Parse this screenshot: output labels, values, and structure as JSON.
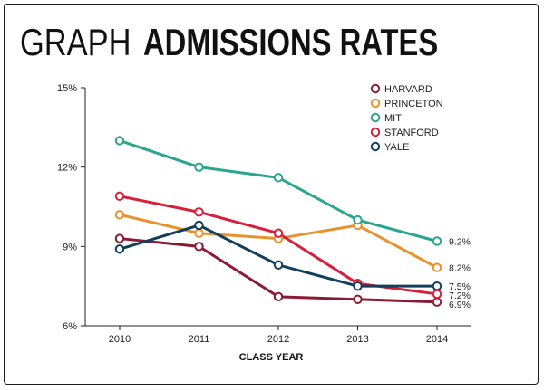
{
  "header": {
    "title_light": "GRAPH",
    "title_bold": "ADMISSIONS RATES"
  },
  "chart_data": {
    "type": "line",
    "title": "GRAPH ADMISSIONS RATES",
    "xlabel": "CLASS YEAR",
    "ylabel": "",
    "x": [
      2010,
      2011,
      2012,
      2013,
      2014
    ],
    "x_tick_labels": [
      "2010",
      "2011",
      "2012",
      "2013",
      "2014"
    ],
    "ylim": [
      6,
      15
    ],
    "y_ticks": [
      6,
      9,
      12,
      15
    ],
    "y_tick_labels": [
      "6%",
      "9%",
      "12%",
      "15%"
    ],
    "grid": false,
    "legend_position": "top-right",
    "series": [
      {
        "name": "HARVARD",
        "color": "#8b1a35",
        "values": [
          9.3,
          9.0,
          7.1,
          7.0,
          6.9
        ],
        "end_label": "6.9%"
      },
      {
        "name": "PRINCETON",
        "color": "#e8922e",
        "values": [
          10.2,
          9.5,
          9.3,
          9.8,
          8.2
        ],
        "end_label": "8.2%"
      },
      {
        "name": "MIT",
        "color": "#2aa590",
        "values": [
          13.0,
          12.0,
          11.6,
          10.0,
          9.2
        ],
        "end_label": "9.2%"
      },
      {
        "name": "STANFORD",
        "color": "#d6203b",
        "values": [
          10.9,
          10.3,
          9.5,
          7.6,
          7.2
        ],
        "end_label": "7.2%"
      },
      {
        "name": "YALE",
        "color": "#123f5c",
        "values": [
          8.9,
          9.8,
          8.3,
          7.5,
          7.5
        ],
        "end_label": "7.5%"
      }
    ]
  }
}
